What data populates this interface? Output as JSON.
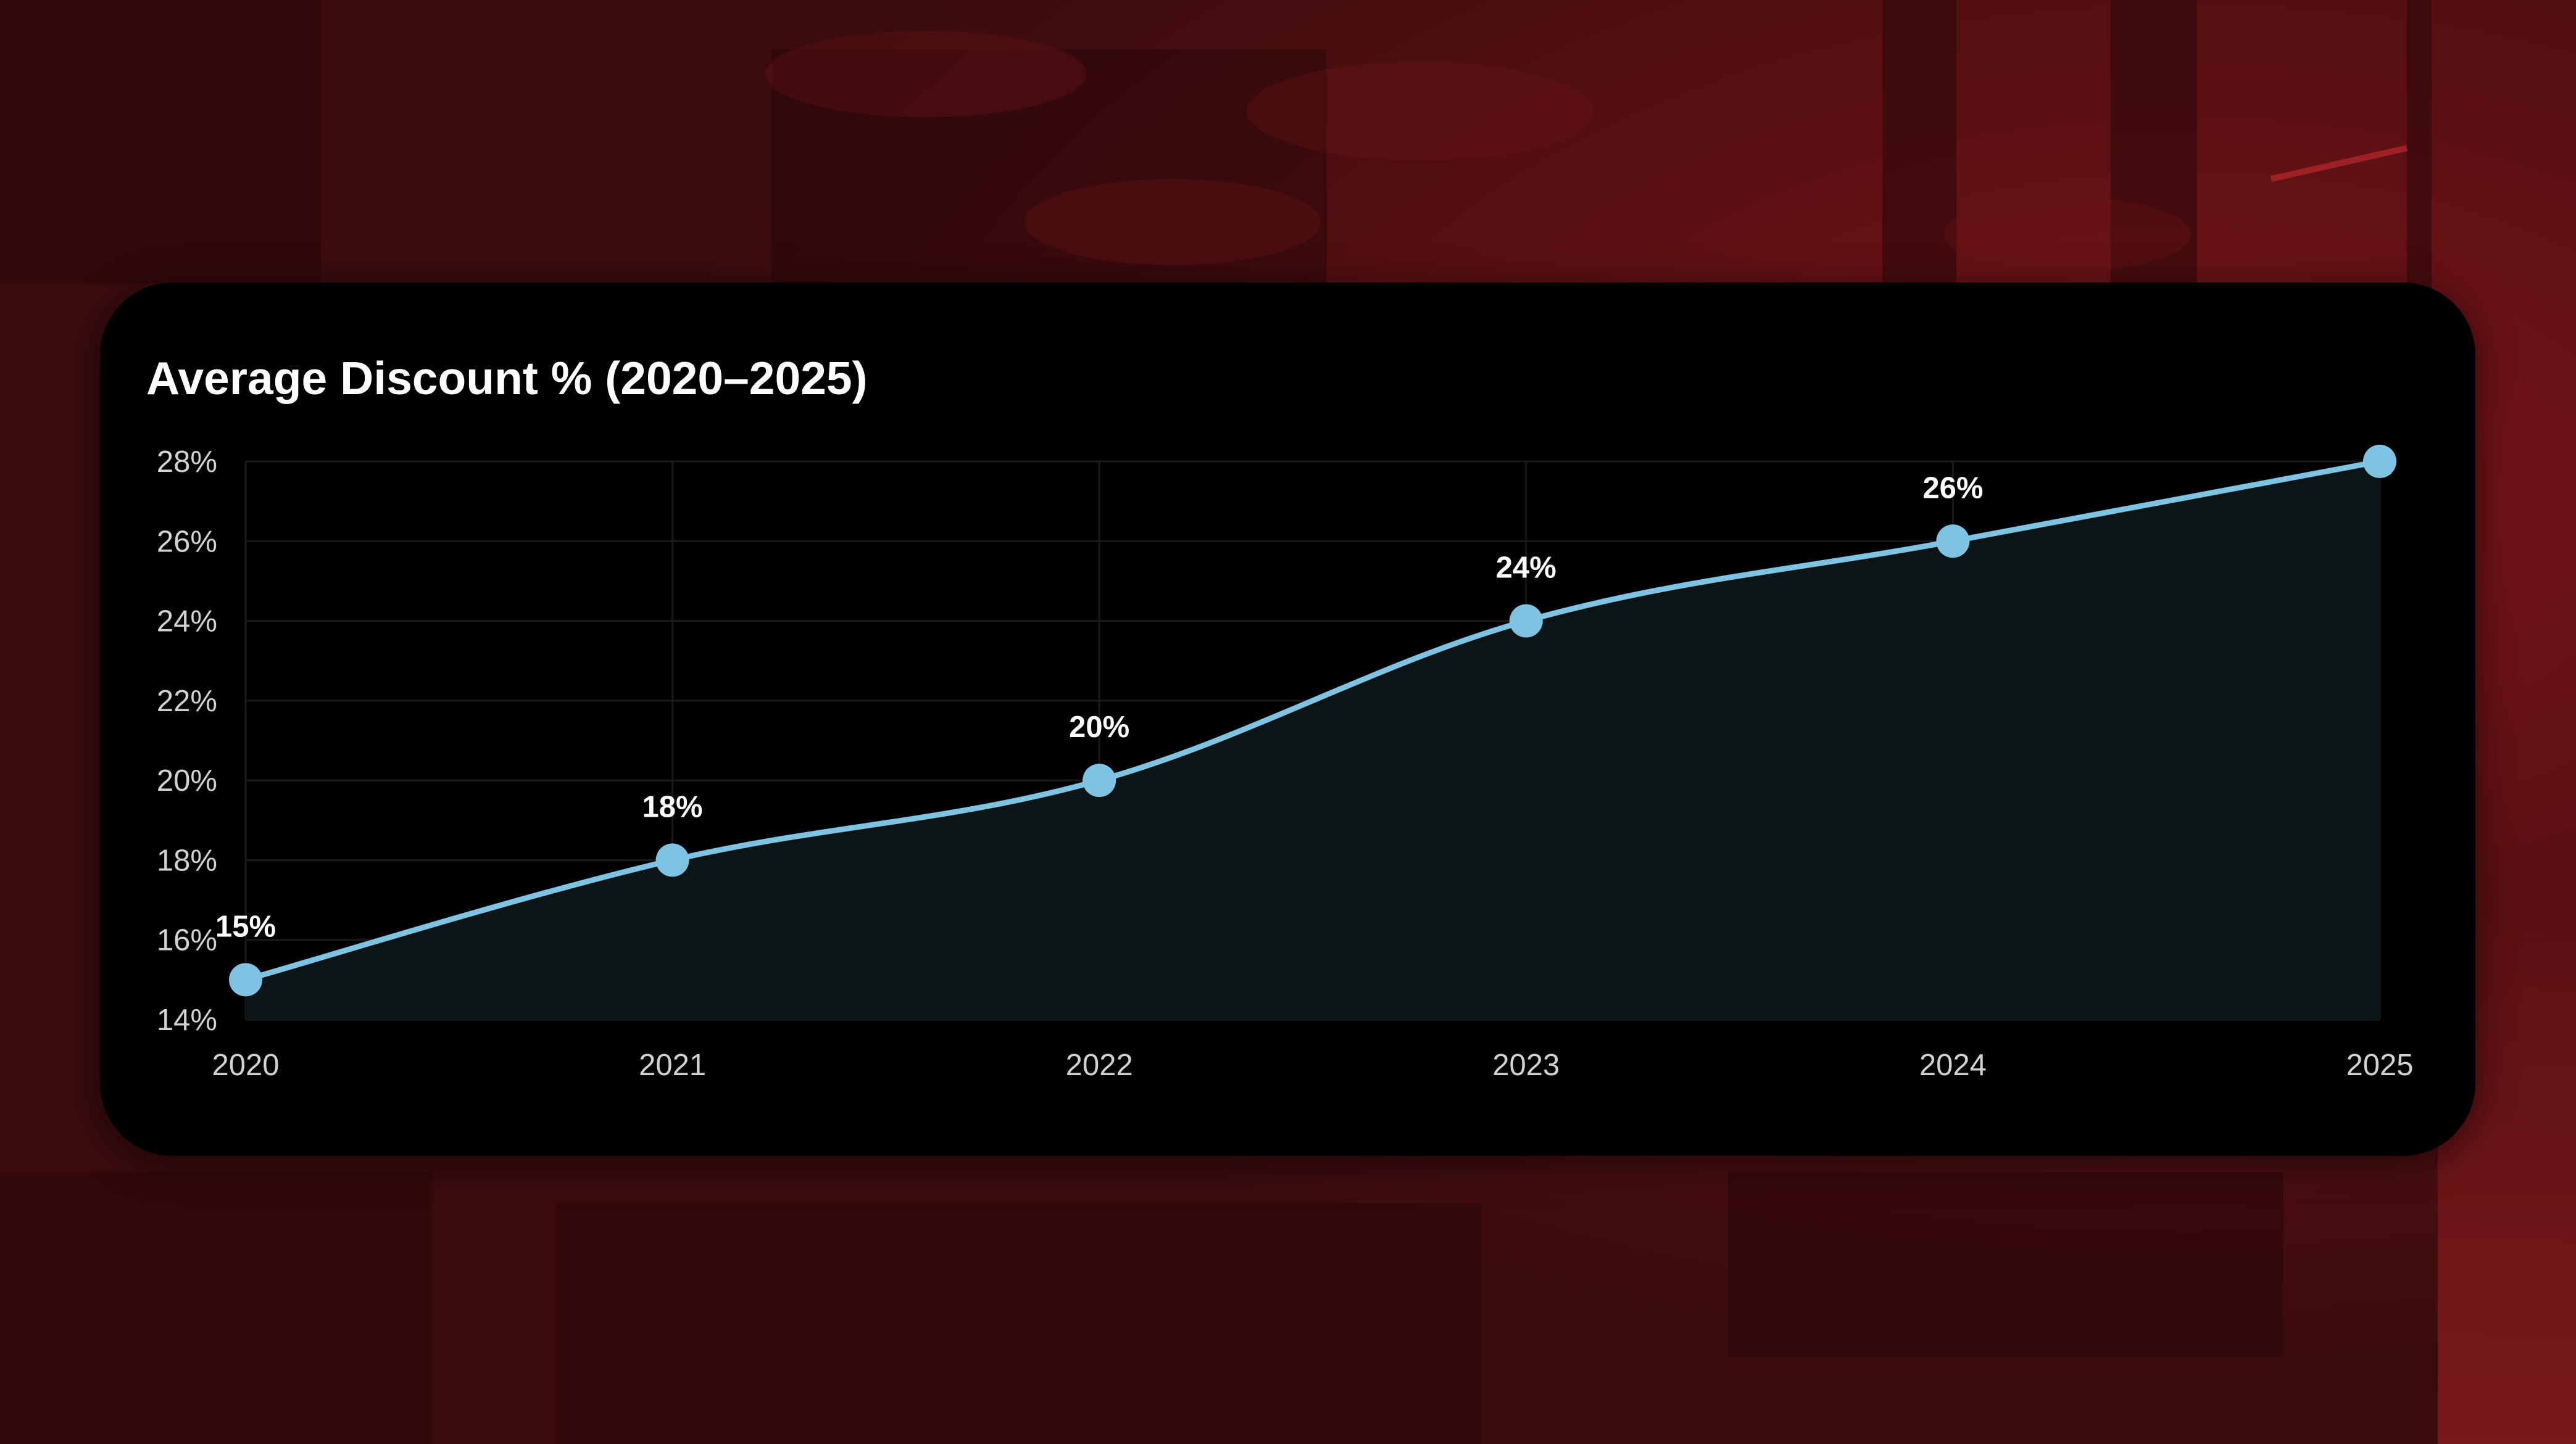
{
  "chart_data": {
    "type": "line",
    "title": "Average Discount % (2020–2025)",
    "xlabel": "",
    "ylabel": "",
    "categories": [
      "2020",
      "2021",
      "2022",
      "2023",
      "2024",
      "2025"
    ],
    "series": [
      {
        "values": [
          15,
          18,
          20,
          24,
          26,
          28
        ],
        "data_labels": [
          "15%",
          "18%",
          "20%",
          "24%",
          "26%",
          ""
        ]
      }
    ],
    "ylim": [
      14,
      28
    ],
    "y_ticks": [
      14,
      16,
      18,
      20,
      22,
      24,
      26,
      28
    ],
    "y_tick_suffix": "%",
    "grid": true,
    "legend": "none",
    "smooth": true,
    "fill_area": true
  },
  "colors": {
    "line": "#7ec4e2",
    "point": "#7ec4e2",
    "area": "#0b1416",
    "grid": "#1a1a1a",
    "card_background": "#000000",
    "page_background": "#3b0d0f"
  }
}
